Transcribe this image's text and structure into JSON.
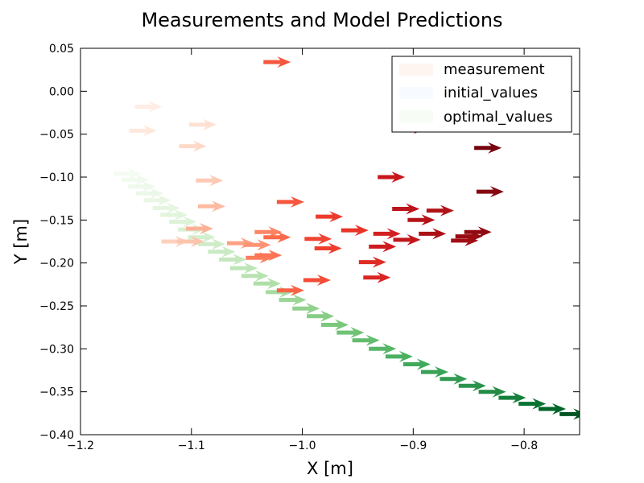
{
  "chart_data": {
    "type": "scatter",
    "title": "Measurements and Model Predictions",
    "xlabel": "X [m]",
    "ylabel": "Y [m]",
    "xlim": [
      -1.2,
      -0.75
    ],
    "ylim": [
      -0.4,
      0.05
    ],
    "xticks": [
      "−1.2",
      "−1.1",
      "−1.0",
      "−0.9",
      "−0.8"
    ],
    "yticks": [
      "0.05",
      "0.00",
      "−0.05",
      "−0.10",
      "−0.15",
      "−0.20",
      "−0.25",
      "−0.30",
      "−0.35",
      "−0.40"
    ],
    "grid": false,
    "legend_position": "upper right",
    "series": [
      {
        "name": "measurement",
        "colormap": "Reds",
        "legend_color": "#fff5f0",
        "points": [
          {
            "x": -1.151,
            "y": -0.018,
            "t": 0.05
          },
          {
            "x": -1.156,
            "y": -0.046,
            "t": 0.08
          },
          {
            "x": -1.102,
            "y": -0.039,
            "t": 0.12
          },
          {
            "x": -1.111,
            "y": -0.064,
            "t": 0.15
          },
          {
            "x": -1.096,
            "y": -0.104,
            "t": 0.2
          },
          {
            "x": -1.094,
            "y": -0.134,
            "t": 0.25
          },
          {
            "x": -1.127,
            "y": -0.175,
            "t": 0.18
          },
          {
            "x": -1.113,
            "y": -0.175,
            "t": 0.22
          },
          {
            "x": -1.105,
            "y": -0.16,
            "t": 0.28
          },
          {
            "x": -1.068,
            "y": -0.177,
            "t": 0.33
          },
          {
            "x": -1.053,
            "y": -0.179,
            "t": 0.37
          },
          {
            "x": -1.043,
            "y": -0.164,
            "t": 0.42
          },
          {
            "x": -1.051,
            "y": -0.194,
            "t": 0.44
          },
          {
            "x": -1.043,
            "y": -0.191,
            "t": 0.47
          },
          {
            "x": -1.035,
            "y": -0.17,
            "t": 0.5
          },
          {
            "x": -1.023,
            "y": -0.129,
            "t": 0.55
          },
          {
            "x": -1.023,
            "y": -0.232,
            "t": 0.52
          },
          {
            "x": -0.999,
            "y": -0.22,
            "t": 0.58
          },
          {
            "x": -0.998,
            "y": -0.172,
            "t": 0.6
          },
          {
            "x": -0.989,
            "y": -0.183,
            "t": 0.62
          },
          {
            "x": -0.988,
            "y": -0.146,
            "t": 0.63
          },
          {
            "x": -0.965,
            "y": -0.162,
            "t": 0.65
          },
          {
            "x": -0.949,
            "y": -0.199,
            "t": 0.68
          },
          {
            "x": -0.945,
            "y": -0.217,
            "t": 0.7
          },
          {
            "x": -0.936,
            "y": -0.166,
            "t": 0.72
          },
          {
            "x": -0.94,
            "y": -0.181,
            "t": 0.74
          },
          {
            "x": -0.932,
            "y": -0.1,
            "t": 0.76
          },
          {
            "x": -0.918,
            "y": -0.173,
            "t": 0.78
          },
          {
            "x": -0.919,
            "y": -0.137,
            "t": 0.8
          },
          {
            "x": -0.905,
            "y": -0.15,
            "t": 0.82
          },
          {
            "x": -0.888,
            "y": -0.139,
            "t": 0.84
          },
          {
            "x": -0.895,
            "y": -0.166,
            "t": 0.85
          },
          {
            "x": -0.912,
            "y": -0.043,
            "t": 0.87
          },
          {
            "x": -0.866,
            "y": -0.174,
            "t": 0.88
          },
          {
            "x": -0.862,
            "y": -0.169,
            "t": 0.9
          },
          {
            "x": -0.854,
            "y": -0.164,
            "t": 0.92
          },
          {
            "x": -0.843,
            "y": -0.117,
            "t": 0.94
          },
          {
            "x": -0.845,
            "y": -0.066,
            "t": 0.97
          },
          {
            "x": -1.035,
            "y": 0.034,
            "t": 0.55
          }
        ]
      },
      {
        "name": "initial_values",
        "colormap": "Blues",
        "legend_color": "#f7fbff",
        "points": []
      },
      {
        "name": "optimal_values",
        "colormap": "Greens",
        "legend_color": "#f7fcf5",
        "points": [
          {
            "x": -1.17,
            "y": -0.096,
            "t": 0.02
          },
          {
            "x": -1.163,
            "y": -0.103,
            "t": 0.04
          },
          {
            "x": -1.157,
            "y": -0.111,
            "t": 0.06
          },
          {
            "x": -1.15,
            "y": -0.119,
            "t": 0.08
          },
          {
            "x": -1.143,
            "y": -0.127,
            "t": 0.1
          },
          {
            "x": -1.135,
            "y": -0.136,
            "t": 0.12
          },
          {
            "x": -1.128,
            "y": -0.144,
            "t": 0.14
          },
          {
            "x": -1.12,
            "y": -0.152,
            "t": 0.16
          },
          {
            "x": -1.112,
            "y": -0.161,
            "t": 0.18
          },
          {
            "x": -1.103,
            "y": -0.17,
            "t": 0.2
          },
          {
            "x": -1.094,
            "y": -0.178,
            "t": 0.22
          },
          {
            "x": -1.085,
            "y": -0.187,
            "t": 0.24
          },
          {
            "x": -1.075,
            "y": -0.196,
            "t": 0.26
          },
          {
            "x": -1.065,
            "y": -0.206,
            "t": 0.28
          },
          {
            "x": -1.055,
            "y": -0.215,
            "t": 0.3
          },
          {
            "x": -1.044,
            "y": -0.224,
            "t": 0.33
          },
          {
            "x": -1.033,
            "y": -0.234,
            "t": 0.36
          },
          {
            "x": -1.021,
            "y": -0.243,
            "t": 0.39
          },
          {
            "x": -1.009,
            "y": -0.253,
            "t": 0.42
          },
          {
            "x": -0.996,
            "y": -0.262,
            "t": 0.45
          },
          {
            "x": -0.983,
            "y": -0.272,
            "t": 0.48
          },
          {
            "x": -0.969,
            "y": -0.281,
            "t": 0.51
          },
          {
            "x": -0.955,
            "y": -0.29,
            "t": 0.54
          },
          {
            "x": -0.94,
            "y": -0.3,
            "t": 0.57
          },
          {
            "x": -0.925,
            "y": -0.309,
            "t": 0.6
          },
          {
            "x": -0.909,
            "y": -0.318,
            "t": 0.63
          },
          {
            "x": -0.893,
            "y": -0.327,
            "t": 0.66
          },
          {
            "x": -0.876,
            "y": -0.335,
            "t": 0.69
          },
          {
            "x": -0.859,
            "y": -0.343,
            "t": 0.72
          },
          {
            "x": -0.841,
            "y": -0.35,
            "t": 0.75
          },
          {
            "x": -0.823,
            "y": -0.357,
            "t": 0.8
          },
          {
            "x": -0.805,
            "y": -0.364,
            "t": 0.85
          },
          {
            "x": -0.787,
            "y": -0.37,
            "t": 0.9
          },
          {
            "x": -0.768,
            "y": -0.376,
            "t": 0.95
          }
        ]
      }
    ]
  }
}
